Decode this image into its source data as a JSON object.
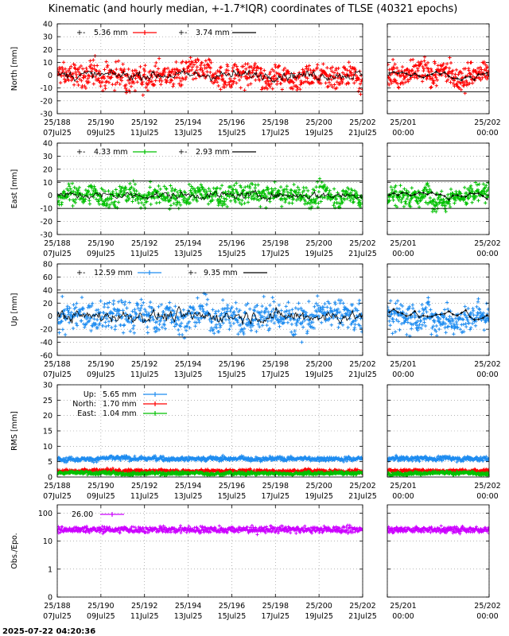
{
  "title": "Kinematic (and hourly median, +-1.7*IQR) coordinates of TLSE (40321 epochs)",
  "timestamp": "2025-07-22 04:20:36",
  "x_main_ticks": [
    {
      "top": "25/188",
      "bottom": "07Jul25"
    },
    {
      "top": "25/190",
      "bottom": "09Jul25"
    },
    {
      "top": "25/192",
      "bottom": "11Jul25"
    },
    {
      "top": "25/194",
      "bottom": "13Jul25"
    },
    {
      "top": "25/196",
      "bottom": "15Jul25"
    },
    {
      "top": "25/198",
      "bottom": "17Jul25"
    },
    {
      "top": "25/200",
      "bottom": "19Jul25"
    },
    {
      "top": "25/202",
      "bottom": "21Jul25"
    }
  ],
  "x_zoom_ticks": [
    {
      "top": "25/201",
      "bottom": "00:00"
    },
    {
      "top": "25/202",
      "bottom": "00:00"
    }
  ],
  "colors": {
    "north": "#ff0000",
    "east": "#00c000",
    "up": "#1e8cf0",
    "obs": "#cc00ff",
    "median": "#000000"
  },
  "chart_data": [
    {
      "type": "scatter",
      "panel": "north",
      "ylabel": "North [mm]",
      "ylim": [
        -30,
        40
      ],
      "yticks": [
        -30,
        -20,
        -10,
        0,
        10,
        20,
        30,
        40
      ],
      "xlim": [
        188,
        202
      ],
      "zoom_xlim": [
        201,
        202
      ],
      "band": [
        -13,
        15
      ],
      "grid": true,
      "series": [
        {
          "name": "5.36 mm",
          "kind": "points",
          "color": "#ff0000",
          "center": 0,
          "spread": 5.36
        },
        {
          "name": "3.74 mm",
          "kind": "median",
          "color": "#000000",
          "center": 0,
          "spread": 3.74
        }
      ]
    },
    {
      "type": "scatter",
      "panel": "east",
      "ylabel": "East [mm]",
      "ylim": [
        -30,
        40
      ],
      "yticks": [
        -30,
        -20,
        -10,
        0,
        10,
        20,
        30,
        40
      ],
      "xlim": [
        188,
        202
      ],
      "zoom_xlim": [
        201,
        202
      ],
      "band": [
        -10,
        11
      ],
      "grid": true,
      "series": [
        {
          "name": "4.33 mm",
          "kind": "points",
          "color": "#00c000",
          "center": 0,
          "spread": 4.33
        },
        {
          "name": "2.93 mm",
          "kind": "median",
          "color": "#000000",
          "center": 0,
          "spread": 2.93
        }
      ]
    },
    {
      "type": "scatter",
      "panel": "up",
      "ylabel": "Up [mm]",
      "ylim": [
        -60,
        80
      ],
      "yticks": [
        -60,
        -40,
        -20,
        0,
        20,
        40,
        60,
        80
      ],
      "xlim": [
        188,
        202
      ],
      "zoom_xlim": [
        201,
        202
      ],
      "band": [
        -32,
        36
      ],
      "grid": true,
      "series": [
        {
          "name": "12.59 mm",
          "kind": "points",
          "color": "#1e8cf0",
          "center": 0,
          "spread": 12.59
        },
        {
          "name": "9.35 mm",
          "kind": "median",
          "color": "#000000",
          "center": 0,
          "spread": 9.35
        }
      ]
    },
    {
      "type": "scatter",
      "panel": "rms",
      "ylabel": "RMS [mm]",
      "ylim": [
        0,
        30
      ],
      "yticks": [
        0,
        5,
        10,
        15,
        20,
        25,
        30
      ],
      "xlim": [
        188,
        202
      ],
      "zoom_xlim": [
        201,
        202
      ],
      "grid": true,
      "legend_labels": [
        "Up:",
        "North:",
        "East:"
      ],
      "series": [
        {
          "name": "5.65 mm",
          "kind": "points",
          "color": "#1e8cf0",
          "center": 6,
          "spread": 0.4
        },
        {
          "name": "1.70 mm",
          "kind": "points",
          "color": "#ff0000",
          "center": 2,
          "spread": 0.3
        },
        {
          "name": "1.04 mm",
          "kind": "points",
          "color": "#00c000",
          "center": 1.2,
          "spread": 0.3
        }
      ]
    },
    {
      "type": "scatter",
      "panel": "obs",
      "ylabel": "Obs./Epo.",
      "yscale": "log",
      "ylim": [
        0.1,
        200
      ],
      "yticks": [
        0.1,
        1,
        10,
        100
      ],
      "ytick_labels": [
        "0",
        "1",
        "10",
        "100"
      ],
      "xlim": [
        188,
        202
      ],
      "zoom_xlim": [
        201,
        202
      ],
      "grid": true,
      "series": [
        {
          "name": "26.00",
          "kind": "points",
          "color": "#cc00ff",
          "center": 26,
          "spread": 0.06
        }
      ]
    }
  ]
}
